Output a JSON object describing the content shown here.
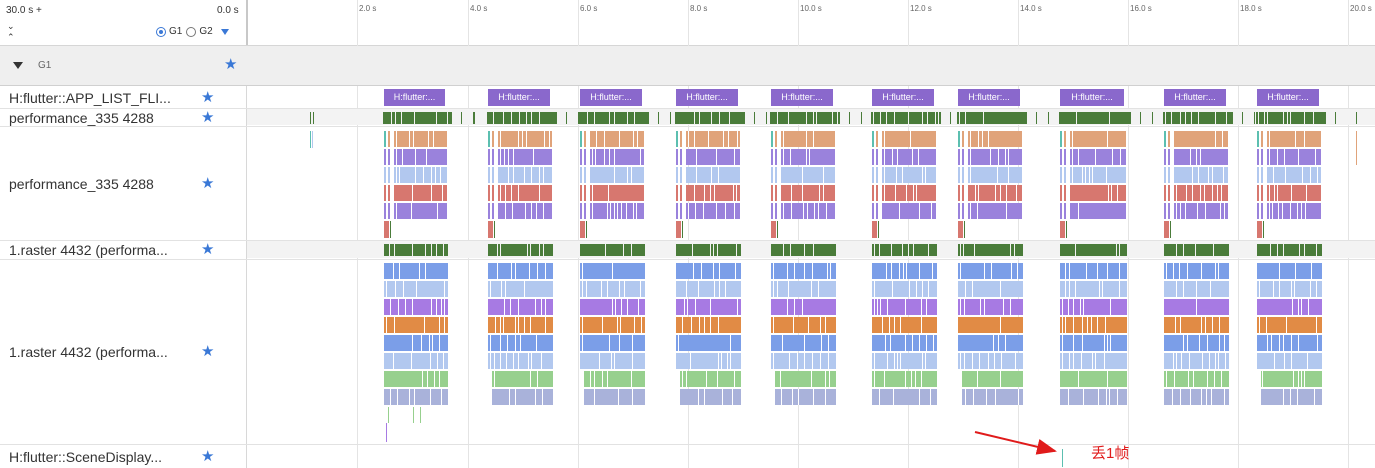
{
  "header": {
    "range_start": "30.0 s +",
    "range_end": "0.0 s",
    "expand_icon": "chevron-down-icon",
    "collapse_icon": "chevron-up-icon",
    "group_options": [
      "G1",
      "G2"
    ],
    "selected_group": "G1"
  },
  "ruler": {
    "ticks": [
      "2.0 s",
      "4.0 s",
      "6.0 s",
      "8.0 s",
      "10.0 s",
      "12.0 s",
      "14.0 s",
      "16.0 s",
      "18.0 s",
      "20.0 s"
    ]
  },
  "group": {
    "name": "G1",
    "expand_icon": "caret-down-icon"
  },
  "tracks": [
    {
      "label": "H:flutter::APP_LIST_FLI...",
      "starred": true
    },
    {
      "label": "performance_335 4288",
      "starred": true
    },
    {
      "label": "performance_335 4288",
      "starred": true
    },
    {
      "label": "1.raster 4432 (performa...",
      "starred": true
    },
    {
      "label": "1.raster 4432 (performa...",
      "starred": true
    },
    {
      "label": "H:flutter::SceneDisplay...",
      "starred": true
    }
  ],
  "slices": {
    "label": "H:flutter:...",
    "count": 10
  },
  "annotation": {
    "text": "丢1帧",
    "color": "#e01b1b"
  },
  "colors": {
    "accent": "#3a78d6",
    "slice_purple": "#8a68cc",
    "dark_green": "#4a7c3a",
    "peach": "#e0a37a",
    "violet": "#9a82dc",
    "light_blue": "#b2c8ef",
    "salmon": "#d7776f",
    "blue": "#7b9ee8",
    "orange": "#e18b45",
    "purple": "#a77ae3",
    "light_green": "#97d08e",
    "lavender": "#a9b2da",
    "teal": "#5cbfb0"
  }
}
